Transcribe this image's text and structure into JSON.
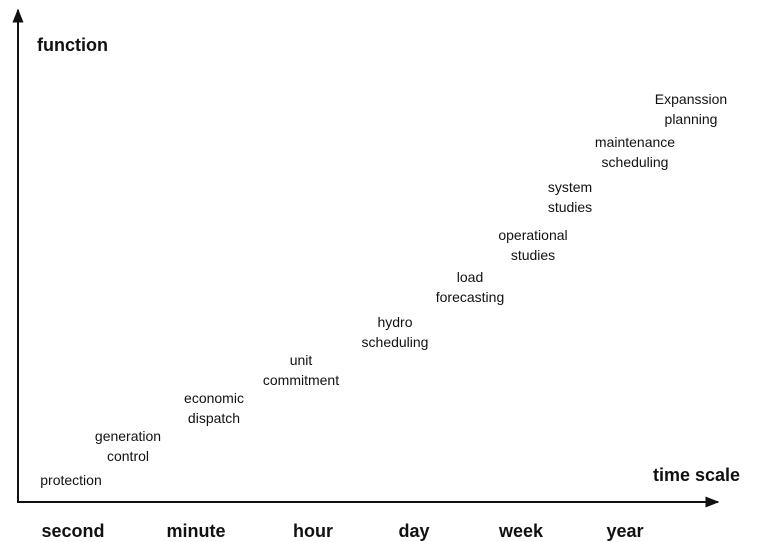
{
  "y_axis_label": "function",
  "x_axis_label": "time scale",
  "time_scale": [
    "second",
    "minute",
    "hour",
    "day",
    "week",
    "year"
  ],
  "functions": [
    {
      "lines": [
        "protection"
      ]
    },
    {
      "lines": [
        "generation",
        "control"
      ]
    },
    {
      "lines": [
        "economic",
        "dispatch"
      ]
    },
    {
      "lines": [
        "unit",
        "commitment"
      ]
    },
    {
      "lines": [
        "hydro",
        "scheduling"
      ]
    },
    {
      "lines": [
        "load",
        "forecasting"
      ]
    },
    {
      "lines": [
        "operational",
        "studies"
      ]
    },
    {
      "lines": [
        "system",
        "studies"
      ]
    },
    {
      "lines": [
        "maintenance",
        "scheduling"
      ]
    },
    {
      "lines": [
        "Expanssion",
        "planning"
      ]
    }
  ]
}
